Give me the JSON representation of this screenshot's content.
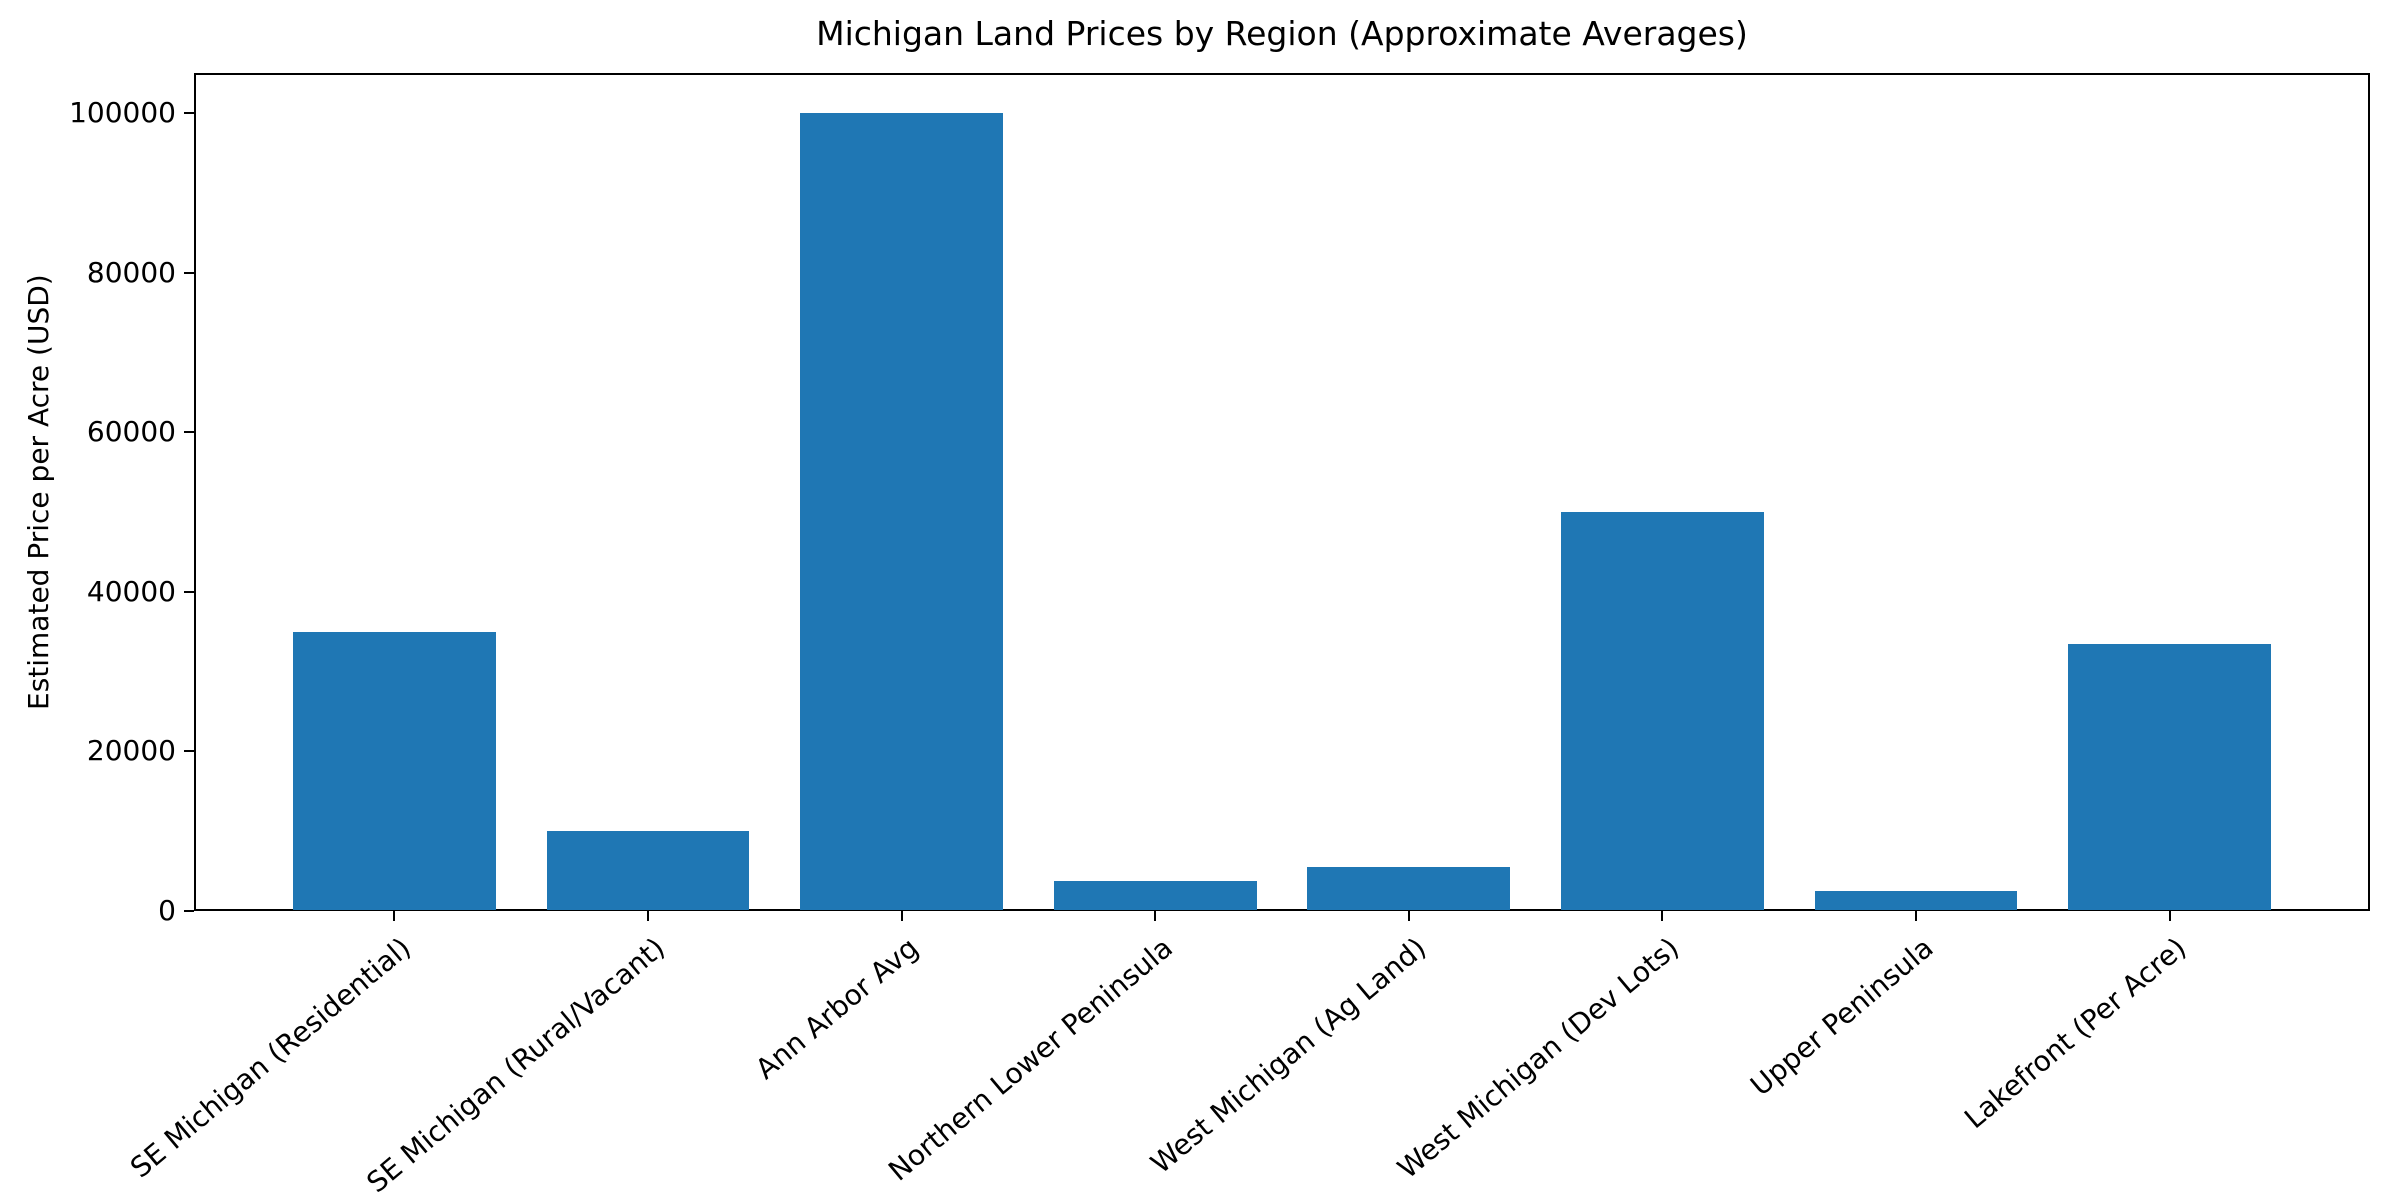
{
  "chart_data": {
    "type": "bar",
    "title": "Michigan Land Prices by Region (Approximate Averages)",
    "xlabel": "",
    "ylabel": "Estimated Price per Acre (USD)",
    "categories": [
      "SE Michigan (Residential)",
      "SE Michigan (Rural/Vacant)",
      "Ann Arbor Avg",
      "Northern Lower Peninsula",
      "West Michigan (Ag Land)",
      "West Michigan (Dev Lots)",
      "Upper Peninsula",
      "Lakefront (Per Acre)"
    ],
    "values": [
      35000,
      10000,
      100000,
      3750,
      5500,
      50000,
      2500,
      33500
    ],
    "bar_color": "#1f77b4",
    "axis_color": "#000000",
    "background_color": "#ffffff",
    "ylim": [
      0,
      105000
    ],
    "yticks": [
      0,
      20000,
      40000,
      60000,
      80000,
      100000
    ],
    "grid": false,
    "legend": null,
    "x_tick_rotation_deg": 40,
    "bar_width_fraction": 0.8
  }
}
